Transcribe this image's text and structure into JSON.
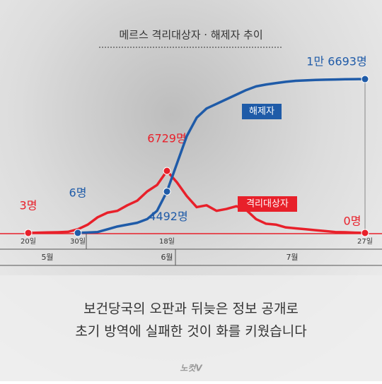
{
  "chart_data": {
    "type": "line",
    "title": "메르스 격리대상자 · 해제자 추이",
    "categories": [
      "20일",
      null,
      null,
      null,
      null,
      "30일",
      null,
      null,
      null,
      null,
      null,
      null,
      null,
      null,
      "18일",
      null,
      null,
      null,
      null,
      null,
      null,
      null,
      null,
      null,
      null,
      null,
      null,
      null,
      null,
      null,
      null,
      null,
      null,
      null,
      "27일"
    ],
    "month_labels": [
      "5월",
      "6월",
      "7월"
    ],
    "ylim": [
      0,
      17000
    ],
    "series": [
      {
        "name": "격리대상자",
        "color": "#e8202a",
        "values": [
          3,
          30,
          60,
          80,
          120,
          400,
          900,
          1700,
          2200,
          2400,
          3000,
          3500,
          4500,
          5200,
          6729,
          5500,
          4000,
          2800,
          3000,
          2400,
          2600,
          2900,
          2500,
          1500,
          1000,
          900,
          600,
          500,
          400,
          300,
          200,
          100,
          80,
          30,
          0
        ],
        "value_labels": [
          "3명",
          null,
          null,
          null,
          null,
          null,
          null,
          null,
          null,
          null,
          null,
          null,
          null,
          null,
          "6729명",
          null,
          null,
          null,
          null,
          null,
          null,
          null,
          null,
          null,
          null,
          null,
          null,
          null,
          null,
          null,
          null,
          null,
          null,
          null,
          "0명"
        ]
      },
      {
        "name": "해제자",
        "color": "#1f5ba8",
        "values": [
          null,
          null,
          null,
          null,
          null,
          6,
          50,
          100,
          400,
          700,
          900,
          1100,
          1500,
          2400,
          4492,
          7500,
          10500,
          12500,
          13500,
          14000,
          14500,
          15000,
          15500,
          15900,
          16100,
          16250,
          16400,
          16500,
          16550,
          16600,
          16630,
          16650,
          16670,
          16685,
          16693
        ],
        "value_labels": [
          null,
          null,
          null,
          null,
          null,
          "6명",
          null,
          null,
          null,
          null,
          null,
          null,
          null,
          null,
          "4492명",
          null,
          null,
          null,
          null,
          null,
          null,
          null,
          null,
          null,
          null,
          null,
          null,
          null,
          null,
          null,
          null,
          null,
          null,
          null,
          "1만 6693명"
        ]
      }
    ],
    "caption": [
      "보건당국의 오판과 뒤늦은 정보 공개로",
      "초기 방역에 실패한 것이 화를 키웠습니다"
    ],
    "logo": "노컷V"
  }
}
